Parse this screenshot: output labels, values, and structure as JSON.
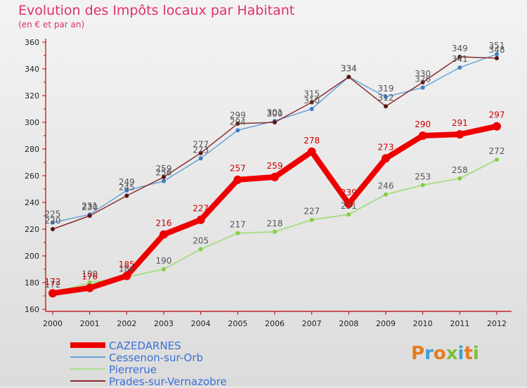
{
  "header": {
    "title": "Evolution des Impôts locaux par Habitant",
    "subtitle": "(en € et par an)"
  },
  "logo": {
    "text": "Proxiti"
  },
  "chart_data": {
    "type": "line",
    "x": [
      "2000",
      "2001",
      "2002",
      "2003",
      "2004",
      "2005",
      "2006",
      "2007",
      "2008",
      "2009",
      "2010",
      "2011",
      "2012"
    ],
    "ylim": [
      160,
      360
    ],
    "yticks": [
      "160",
      "180",
      "200",
      "220",
      "240",
      "260",
      "280",
      "300",
      "320",
      "340",
      "360"
    ],
    "grid": false,
    "legend_position": "bottom-left",
    "series": [
      {
        "name": "CAZEDARNES",
        "color": "#ee0000",
        "point_color": "#ee0000",
        "label_color": "#cc0000",
        "stroke": 8,
        "values": [
          172,
          176,
          185,
          216,
          227,
          257,
          259,
          278,
          239,
          273,
          290,
          291,
          297
        ],
        "labels": [
          "172",
          "176",
          "185",
          "216",
          "227",
          "257",
          "259",
          "278",
          "239",
          "273",
          "290",
          "291",
          "297"
        ]
      },
      {
        "name": "Cessenon-sur-Orb",
        "color": "#6aa3d8",
        "point_color": "#3d7fc4",
        "label_color": "#555555",
        "stroke": 1.5,
        "values": [
          225,
          231,
          249,
          256,
          273,
          294,
          301,
          310,
          334,
          319,
          326,
          341,
          351
        ],
        "labels": [
          "225",
          "231",
          "249",
          "256",
          "273",
          "294",
          "301",
          "310",
          "334",
          "319",
          "326",
          "341",
          "351"
        ]
      },
      {
        "name": "Pierrerue",
        "color": "#aadd88",
        "point_color": "#88cc44",
        "label_color": "#555555",
        "stroke": 2,
        "values": [
          172,
          180,
          184,
          190,
          205,
          217,
          218,
          227,
          231,
          246,
          253,
          258,
          272
        ],
        "labels": [
          "172",
          "180",
          "184",
          "190",
          "205",
          "217",
          "218",
          "227",
          "231",
          "246",
          "253",
          "258",
          "272"
        ]
      },
      {
        "name": "Prades-sur-Vernazobre",
        "color": "#8b2c2c",
        "point_color": "#5a1212",
        "label_color": "#555555",
        "stroke": 1.5,
        "values": [
          220,
          230,
          245,
          259,
          277,
          299,
          300,
          315,
          334,
          312,
          330,
          349,
          348
        ],
        "labels": [
          "220",
          "230",
          "245",
          "259",
          "277",
          "299",
          "300",
          "315",
          "334",
          "312",
          "330",
          "349",
          "348"
        ]
      }
    ]
  }
}
